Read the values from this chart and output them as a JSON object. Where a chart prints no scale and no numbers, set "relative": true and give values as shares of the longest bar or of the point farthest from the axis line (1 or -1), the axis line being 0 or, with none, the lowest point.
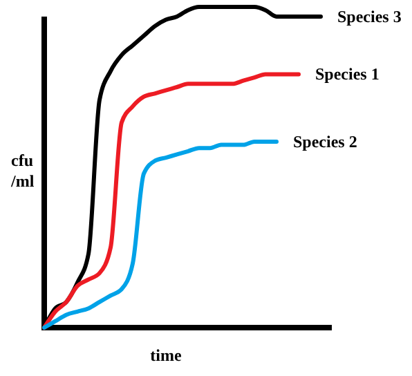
{
  "chart_data": {
    "type": "line",
    "relative": true,
    "xlabel": "time",
    "ylabel": "cfu /ml",
    "categories": [
      null,
      null,
      null,
      null,
      null,
      null,
      null,
      null,
      null,
      null,
      null,
      null,
      null,
      null,
      null,
      null,
      null,
      null,
      null,
      null,
      null,
      null,
      null,
      null,
      null,
      null
    ],
    "series": [
      {
        "name": "Species 3",
        "color": "#000000",
        "values": [
          0,
          0.06,
          0.08,
          0.14,
          0.23,
          0.71,
          0.8,
          0.85,
          0.88,
          0.91,
          0.94,
          0.96,
          0.97,
          0.99,
          1,
          1,
          1,
          1,
          1,
          1,
          0.99,
          0.97,
          0.97,
          0.97,
          0.97,
          0.97
        ]
      },
      {
        "name": "Species 1",
        "color": "#ed1c24",
        "values": [
          0,
          0.05,
          0.08,
          0.13,
          0.15,
          0.17,
          0.25,
          0.64,
          0.69,
          0.72,
          0.73,
          0.74,
          0.75,
          0.76,
          0.76,
          0.76,
          0.76,
          0.76,
          0.77,
          0.78,
          0.79,
          0.79,
          0.79,
          0.79,
          null,
          null
        ]
      },
      {
        "name": "Species 2",
        "color": "#00a2e8",
        "values": [
          0,
          0.02,
          0.04,
          0.05,
          0.06,
          0.08,
          0.1,
          0.12,
          0.2,
          0.48,
          0.52,
          0.53,
          0.54,
          0.55,
          0.56,
          0.56,
          0.57,
          0.57,
          0.57,
          0.58,
          0.58,
          0.58,
          null,
          null,
          null,
          null
        ]
      }
    ]
  }
}
